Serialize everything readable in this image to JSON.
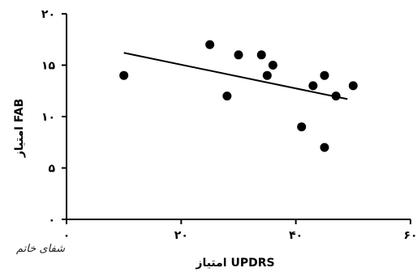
{
  "chart_data": {
    "type": "scatter",
    "title": "",
    "xlabel": "امتیاز UPDRS",
    "ylabel": "امتیاز FAB",
    "xlim": [
      0,
      60
    ],
    "ylim": [
      0,
      20
    ],
    "x_ticks": [
      {
        "value": 0,
        "label": "۰"
      },
      {
        "value": 20,
        "label": "۲۰"
      },
      {
        "value": 40,
        "label": "۴۰"
      },
      {
        "value": 60,
        "label": "۶۰"
      }
    ],
    "y_ticks": [
      {
        "value": 0,
        "label": "۰"
      },
      {
        "value": 5,
        "label": "۵"
      },
      {
        "value": 10,
        "label": "۱۰"
      },
      {
        "value": 15,
        "label": "۱۵"
      },
      {
        "value": 20,
        "label": "۲۰"
      }
    ],
    "points": [
      {
        "x": 10,
        "y": 14
      },
      {
        "x": 25,
        "y": 17
      },
      {
        "x": 28,
        "y": 12
      },
      {
        "x": 30,
        "y": 16
      },
      {
        "x": 34,
        "y": 16
      },
      {
        "x": 35,
        "y": 14
      },
      {
        "x": 36,
        "y": 15
      },
      {
        "x": 41,
        "y": 9
      },
      {
        "x": 43,
        "y": 13
      },
      {
        "x": 45,
        "y": 14
      },
      {
        "x": 45,
        "y": 7
      },
      {
        "x": 47,
        "y": 12
      },
      {
        "x": 50,
        "y": 13
      }
    ],
    "trendline": {
      "x": [
        10,
        49
      ],
      "y": [
        16.2,
        11.7
      ]
    },
    "grid": false,
    "legend": "none"
  },
  "watermark": {
    "text": "شفای خاتم"
  }
}
